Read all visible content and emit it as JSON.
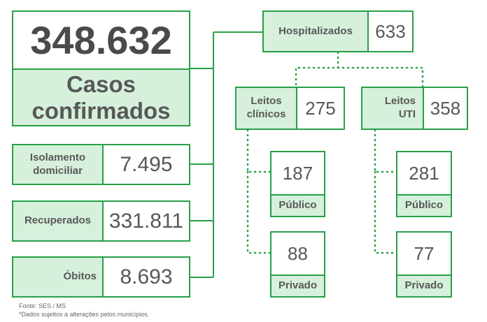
{
  "total": {
    "value": "348.632",
    "label": "Casos confirmados"
  },
  "isolamento": {
    "label": "Isolamento domiciliar",
    "value": "7.495"
  },
  "recuperados": {
    "label": "Recuperados",
    "value": "331.811"
  },
  "obitos": {
    "label": "Óbitos",
    "value": "8.693"
  },
  "hospitalizados": {
    "label": "Hospitalizados",
    "value": "633"
  },
  "leitos_clinicos": {
    "label": "Leitos clínicos",
    "value": "275",
    "publico": "187",
    "privado": "88"
  },
  "leitos_uti": {
    "label": "Leitos UTI",
    "value": "358",
    "publico": "281",
    "privado": "77"
  },
  "labels": {
    "publico": "Público",
    "privado": "Privado"
  },
  "footer": {
    "source": "Fonte: SES / MS",
    "note": "*Dados sujeitos a alterações pelos municípios."
  },
  "colors": {
    "border": "#27a046",
    "label_bg": "#d6f0dc",
    "text": "#575757"
  }
}
